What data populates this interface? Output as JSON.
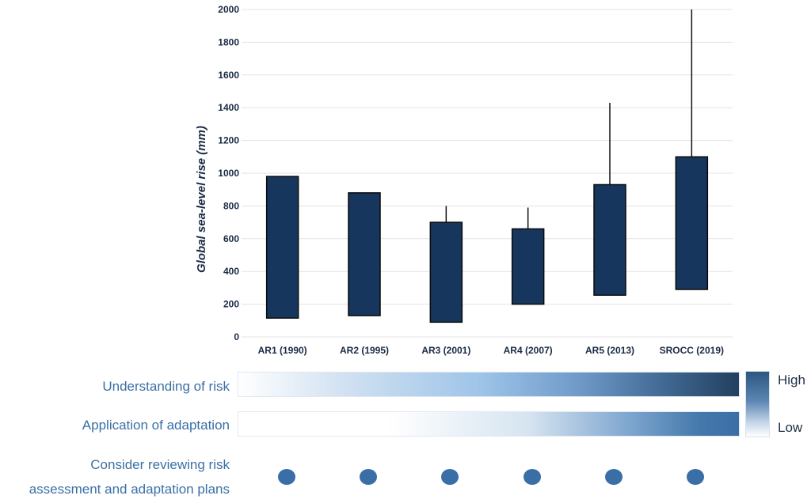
{
  "chart_data": {
    "type": "bar",
    "title": "",
    "xlabel": "",
    "ylabel": "Global sea-level rise (mm)",
    "ylim": [
      0,
      2000
    ],
    "yticks": [
      0,
      200,
      400,
      600,
      800,
      1000,
      1200,
      1400,
      1600,
      1800,
      2000
    ],
    "grid": true,
    "categories": [
      "AR1 (1990)",
      "AR2 (1995)",
      "AR3 (2001)",
      "AR4 (2007)",
      "AR5 (2013)",
      "SROCC (2019)"
    ],
    "low": [
      115,
      130,
      90,
      200,
      255,
      290
    ],
    "high": [
      980,
      880,
      700,
      660,
      930,
      1100
    ],
    "whisker_top": [
      null,
      null,
      800,
      790,
      1430,
      2000
    ],
    "bar_color": "#17365d"
  },
  "rows": {
    "understanding": {
      "label": "Understanding of risk"
    },
    "adaptation": {
      "label": "Application of adaptation"
    },
    "review": {
      "line1": "Consider reviewing risk",
      "line2": "assessment and adaptation plans",
      "dot_color": "#3a6ea6"
    }
  },
  "legend": {
    "high": "High",
    "low": "Low"
  }
}
